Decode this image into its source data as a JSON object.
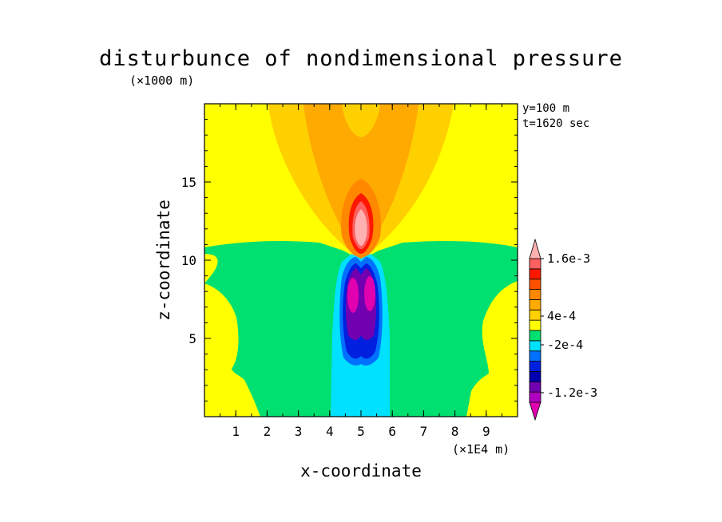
{
  "chart_data": {
    "type": "heatmap",
    "title": "disturbunce of nondimensional pressure",
    "xlabel": "x-coordinate",
    "ylabel": "z-coordinate",
    "x_unit": "(×1E4 m)",
    "y_unit": "(×1000 m)",
    "xlim": [
      0,
      10
    ],
    "ylim": [
      0,
      20
    ],
    "x_ticks": [
      1,
      2,
      3,
      4,
      5,
      6,
      7,
      8,
      9
    ],
    "y_ticks": [
      5,
      10,
      15
    ],
    "annotations": [
      "y=100 m",
      "t=1620 sec"
    ],
    "colorbar": {
      "levels": [
        "-1.6e-3",
        "-1.4e-3",
        "-1.2e-3",
        "-1e-3",
        "-8e-4",
        "-6e-4",
        "-4e-4",
        "-2e-4",
        "0",
        "2e-4",
        "4e-4",
        "6e-4",
        "8e-4",
        "1e-3",
        "1.2e-3",
        "1.4e-3",
        "1.6e-3",
        "1.8e-3"
      ],
      "colors": [
        "#e000b0",
        "#b000c0",
        "#7000b0",
        "#0000b0",
        "#0020e0",
        "#0070ff",
        "#00e0ff",
        "#00e070",
        "#ffff00",
        "#ffd000",
        "#ffaa00",
        "#ff8800",
        "#ff5000",
        "#ff1800",
        "#ff6060",
        "#ffb0b0"
      ],
      "tick_labels": [
        "1.6e-3",
        "4e-4",
        "-2e-4",
        "-1.2e-3"
      ],
      "tick_values": [
        0.0016,
        0.0004,
        -0.0002,
        -0.0012
      ]
    },
    "regions": {
      "background": "#ffff00",
      "negative_lower_layer": "#00e070",
      "weak_negative_column": "#00e0ff",
      "moderate_negative_core": "#0070ff",
      "strong_negative_core": "#0020e0",
      "very_strong_negative_core": "#7000b0",
      "extreme_negative_core": "#e000b0",
      "weak_positive_plume": "#ffd000",
      "moderate_positive_plume": "#ffaa00",
      "strong_positive_core": "#ff5000",
      "max_positive_core": "#ffb0b0"
    }
  }
}
